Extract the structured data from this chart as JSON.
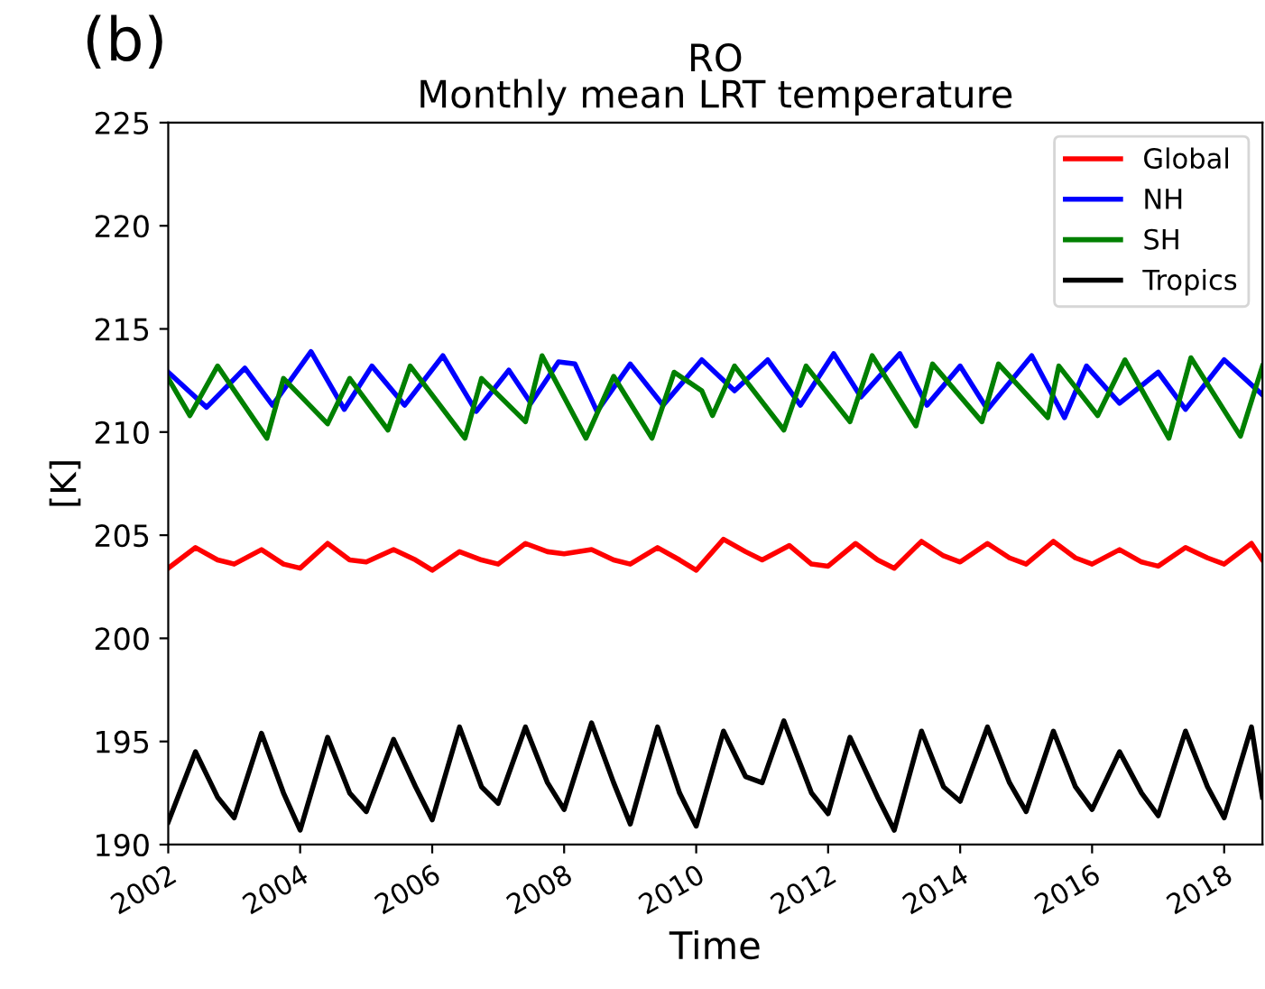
{
  "chart_data": {
    "type": "line",
    "title": "RO\nMonthly mean LRT temperature",
    "xlabel": "Time",
    "ylabel": "[K]",
    "annotations": [
      "(b)"
    ],
    "xlim": [
      "2002-01",
      "2018-08"
    ],
    "xticks": [
      "2002",
      "2004",
      "2006",
      "2008",
      "2010",
      "2012",
      "2014",
      "2016",
      "2018"
    ],
    "ylim": [
      190,
      225
    ],
    "yticks": [
      190,
      195,
      200,
      205,
      210,
      215,
      220,
      225
    ],
    "grid": false,
    "legend": "top right",
    "series": [
      {
        "name": "Global",
        "color": "#ff0000",
        "x": [
          "2002-01",
          "2002-06",
          "2002-10",
          "2003-01",
          "2003-06",
          "2003-10",
          "2004-01",
          "2004-06",
          "2004-10",
          "2005-01",
          "2005-06",
          "2005-10",
          "2006-01",
          "2006-06",
          "2006-10",
          "2007-01",
          "2007-06",
          "2007-10",
          "2008-01",
          "2008-06",
          "2008-10",
          "2009-01",
          "2009-06",
          "2009-10",
          "2010-01",
          "2010-06",
          "2010-10",
          "2011-01",
          "2011-06",
          "2011-10",
          "2012-01",
          "2012-06",
          "2012-10",
          "2013-01",
          "2013-06",
          "2013-10",
          "2014-01",
          "2014-06",
          "2014-10",
          "2015-01",
          "2015-06",
          "2015-10",
          "2016-01",
          "2016-06",
          "2016-10",
          "2017-01",
          "2017-06",
          "2017-10",
          "2018-01",
          "2018-06",
          "2018-08"
        ],
        "values": [
          203.4,
          204.4,
          203.8,
          203.6,
          204.3,
          203.6,
          203.4,
          204.6,
          203.8,
          203.7,
          204.3,
          203.8,
          203.3,
          204.2,
          203.8,
          203.6,
          204.6,
          204.2,
          204.1,
          204.3,
          203.8,
          203.6,
          204.4,
          203.8,
          203.3,
          204.8,
          204.2,
          203.8,
          204.5,
          203.6,
          203.5,
          204.6,
          203.8,
          203.4,
          204.7,
          204.0,
          203.7,
          204.6,
          203.9,
          203.6,
          204.7,
          203.9,
          203.6,
          204.3,
          203.7,
          203.5,
          204.4,
          203.9,
          203.6,
          204.6,
          203.8
        ]
      },
      {
        "name": "NH",
        "color": "#0000ff",
        "x": [
          "2002-01",
          "2002-08",
          "2003-03",
          "2003-08",
          "2004-03",
          "2004-09",
          "2005-02",
          "2005-08",
          "2006-03",
          "2006-09",
          "2007-03",
          "2007-07",
          "2007-12",
          "2008-03",
          "2008-07",
          "2009-01",
          "2009-07",
          "2010-02",
          "2010-08",
          "2011-02",
          "2011-08",
          "2012-02",
          "2012-07",
          "2013-02",
          "2013-07",
          "2014-01",
          "2014-06",
          "2015-02",
          "2015-08",
          "2015-12",
          "2016-06",
          "2017-01",
          "2017-06",
          "2018-01",
          "2018-08"
        ],
        "values": [
          212.9,
          211.2,
          213.1,
          211.3,
          213.9,
          211.1,
          213.2,
          211.3,
          213.7,
          211.0,
          213.0,
          211.4,
          213.4,
          213.3,
          211.0,
          213.3,
          211.3,
          213.5,
          212.0,
          213.5,
          211.3,
          213.8,
          211.7,
          213.8,
          211.3,
          213.2,
          211.1,
          213.7,
          210.7,
          213.2,
          211.4,
          212.9,
          211.1,
          213.5,
          211.8
        ]
      },
      {
        "name": "SH",
        "color": "#008000",
        "x": [
          "2002-01",
          "2002-05",
          "2002-10",
          "2003-07",
          "2003-10",
          "2004-06",
          "2004-10",
          "2005-05",
          "2005-09",
          "2006-07",
          "2006-10",
          "2007-06",
          "2007-09",
          "2008-05",
          "2008-10",
          "2009-05",
          "2009-09",
          "2010-02",
          "2010-04",
          "2010-08",
          "2011-05",
          "2011-09",
          "2012-05",
          "2012-09",
          "2013-05",
          "2013-08",
          "2014-05",
          "2014-08",
          "2015-05",
          "2015-07",
          "2016-02",
          "2016-07",
          "2017-03",
          "2017-07",
          "2018-04",
          "2018-08"
        ],
        "values": [
          212.6,
          210.8,
          213.2,
          209.7,
          212.6,
          210.4,
          212.6,
          210.1,
          213.2,
          209.7,
          212.6,
          210.5,
          213.7,
          209.7,
          212.7,
          209.7,
          212.9,
          212.0,
          210.8,
          213.2,
          210.1,
          213.2,
          210.5,
          213.7,
          210.3,
          213.3,
          210.5,
          213.3,
          210.7,
          213.2,
          210.8,
          213.5,
          209.7,
          213.6,
          209.8,
          213.2
        ]
      },
      {
        "name": "Tropics",
        "color": "#000000",
        "x": [
          "2002-01",
          "2002-06",
          "2002-10",
          "2003-01",
          "2003-06",
          "2003-10",
          "2004-01",
          "2004-06",
          "2004-10",
          "2005-01",
          "2005-06",
          "2005-10",
          "2006-01",
          "2006-06",
          "2006-10",
          "2007-01",
          "2007-06",
          "2007-10",
          "2008-01",
          "2008-06",
          "2008-10",
          "2009-01",
          "2009-06",
          "2009-10",
          "2010-01",
          "2010-06",
          "2010-10",
          "2011-01",
          "2011-05",
          "2011-10",
          "2012-01",
          "2012-05",
          "2012-10",
          "2013-01",
          "2013-06",
          "2013-10",
          "2014-01",
          "2014-06",
          "2014-10",
          "2015-01",
          "2015-06",
          "2015-10",
          "2016-01",
          "2016-06",
          "2016-10",
          "2017-01",
          "2017-06",
          "2017-10",
          "2018-01",
          "2018-06",
          "2018-08"
        ],
        "values": [
          191.1,
          194.5,
          192.3,
          191.3,
          195.4,
          192.5,
          190.7,
          195.2,
          192.5,
          191.6,
          195.1,
          192.8,
          191.2,
          195.7,
          192.8,
          192.0,
          195.7,
          193.0,
          191.7,
          195.9,
          193.0,
          191.0,
          195.7,
          192.5,
          190.9,
          195.5,
          193.3,
          193.0,
          196.0,
          192.5,
          191.5,
          195.2,
          192.3,
          190.7,
          195.5,
          192.8,
          192.1,
          195.7,
          193.0,
          191.6,
          195.5,
          192.8,
          191.7,
          194.5,
          192.5,
          191.4,
          195.5,
          192.8,
          191.3,
          195.7,
          192.3
        ]
      }
    ]
  }
}
